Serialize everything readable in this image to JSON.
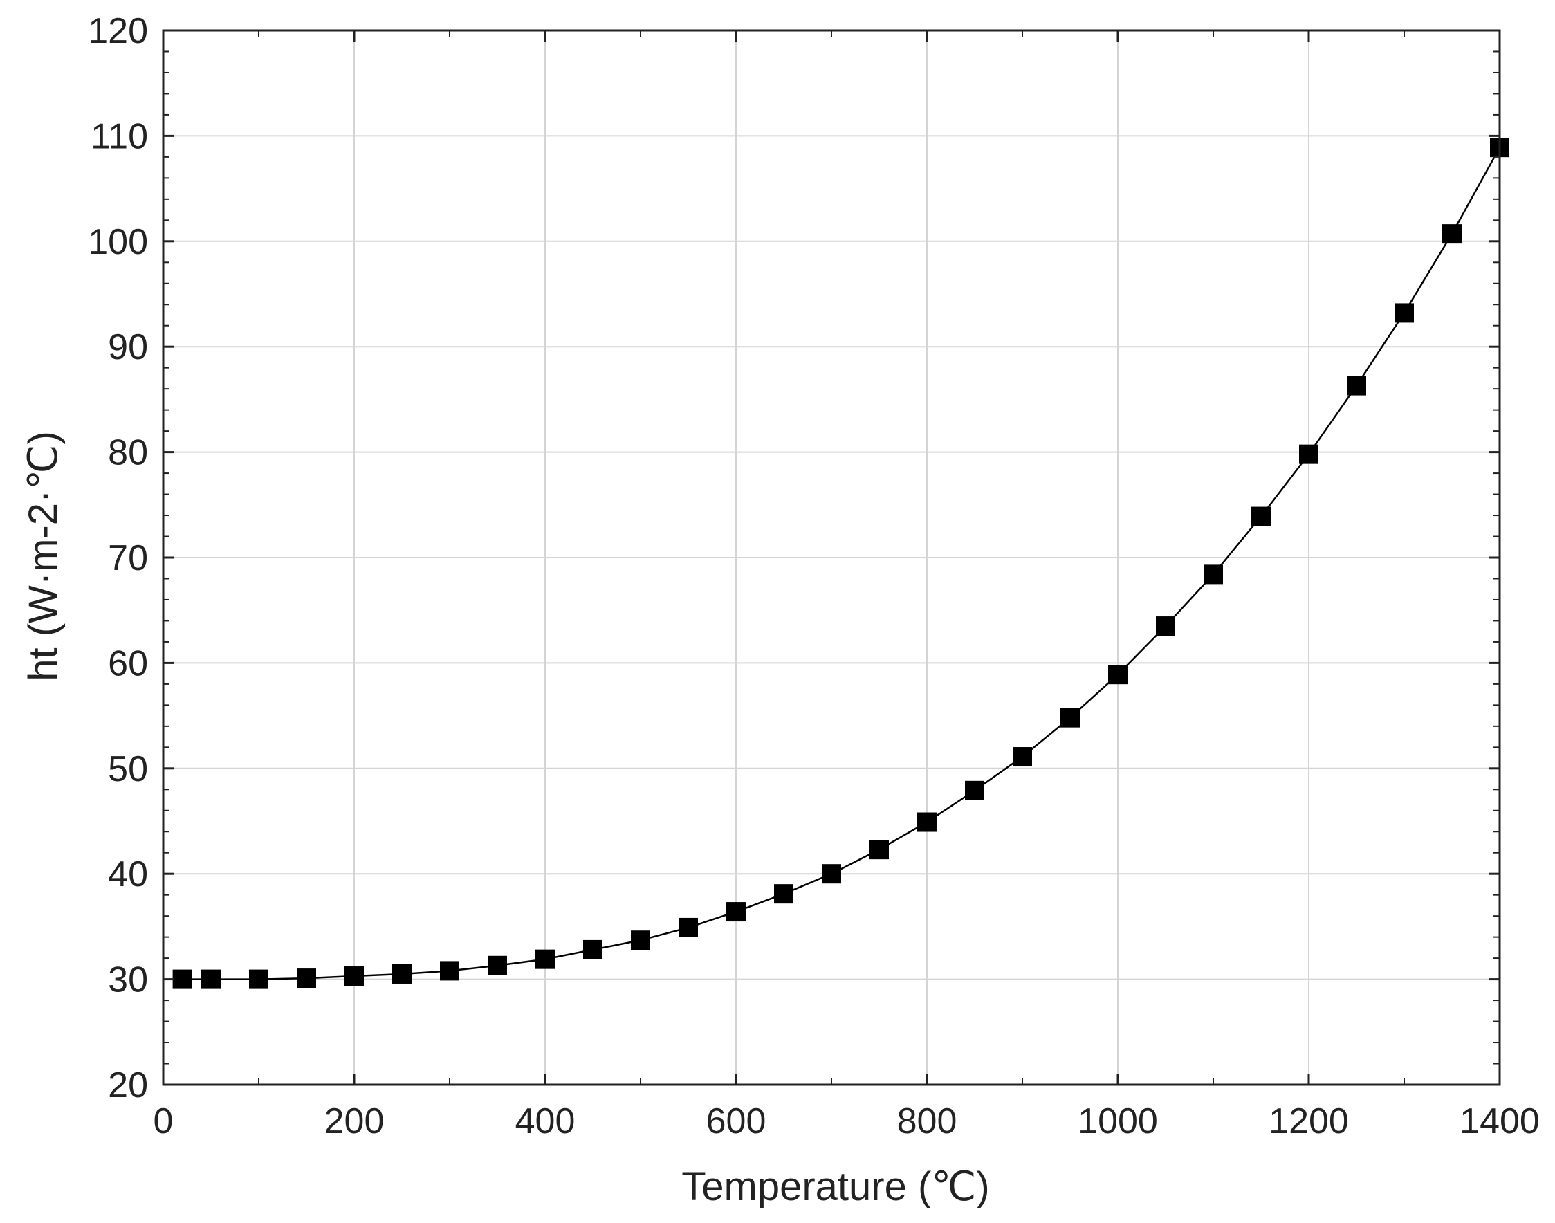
{
  "chart_data": {
    "type": "line",
    "xlabel": "Temperature (℃)",
    "ylabel": "ht (W·m-2·℃)",
    "xlim": [
      0,
      1400
    ],
    "ylim": [
      20,
      120
    ],
    "x_ticks": [
      "0",
      "200",
      "400",
      "600",
      "800",
      "1000",
      "1200",
      "1400"
    ],
    "y_ticks": [
      "20",
      "30",
      "40",
      "50",
      "60",
      "70",
      "80",
      "90",
      "100",
      "110",
      "120"
    ],
    "grid": true,
    "marker": "square",
    "colors": {
      "line": "#000000",
      "marker": "#000000",
      "grid": "#d4d4d4",
      "axis": "#222222"
    },
    "series": [
      {
        "x": [
          20,
          50,
          100,
          150,
          200,
          250,
          300,
          350,
          400,
          450,
          500,
          550,
          600,
          650,
          700,
          750,
          800,
          850,
          900,
          950,
          1000,
          1050,
          1100,
          1150,
          1200,
          1250,
          1300,
          1350,
          1400
        ],
        "y": [
          30.0,
          30.0,
          30.0,
          30.1,
          30.3,
          30.5,
          30.8,
          31.3,
          31.9,
          32.8,
          33.7,
          34.9,
          36.4,
          38.1,
          40.0,
          42.3,
          44.9,
          47.9,
          51.1,
          54.8,
          58.9,
          63.5,
          68.4,
          73.9,
          79.8,
          86.3,
          93.2,
          100.7,
          108.9
        ]
      }
    ]
  }
}
